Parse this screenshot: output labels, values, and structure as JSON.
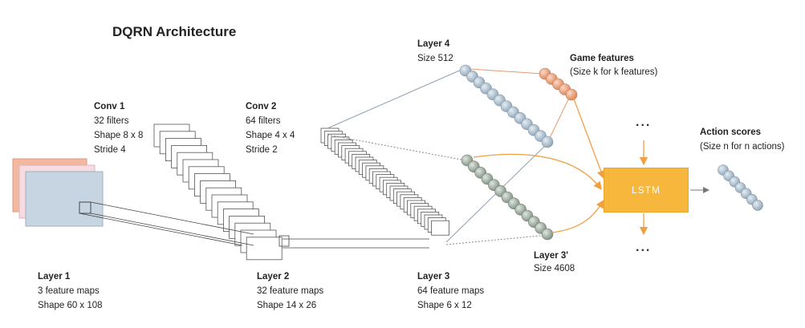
{
  "title": "DQRN Architecture",
  "layer1": {
    "name": "Layer 1",
    "line1": "3 feature maps",
    "line2": "Shape 60 x 108"
  },
  "conv1": {
    "name": "Conv 1",
    "line1": "32 filters",
    "line2": "Shape 8 x 8",
    "line3": "Stride 4"
  },
  "layer2": {
    "name": "Layer 2",
    "line1": "32 feature maps",
    "line2": "Shape 14 x 26"
  },
  "conv2": {
    "name": "Conv 2",
    "line1": "64 filters",
    "line2": "Shape 4 x 4",
    "line3": "Stride 2"
  },
  "layer3": {
    "name": "Layer 3",
    "line1": "64 feature maps",
    "line2": "Shape 6 x 12"
  },
  "layer4": {
    "name": "Layer 4",
    "line1": "Size 512"
  },
  "layer3p": {
    "name": "Layer 3'",
    "line1": "Size 4608"
  },
  "game": {
    "name": "Game features",
    "line1": "(Size k for k features)"
  },
  "action": {
    "name": "Action scores",
    "line1": "(Size n for n actions)"
  },
  "lstm": {
    "label": "LSTM"
  },
  "ellipsis": "...",
  "colors": {
    "lstm": "#f6b73c",
    "arrow": "#f0a042",
    "node_blue": "#a9bccb",
    "node_gray": "#9aa79a",
    "node_orange": "#e8a27a"
  }
}
